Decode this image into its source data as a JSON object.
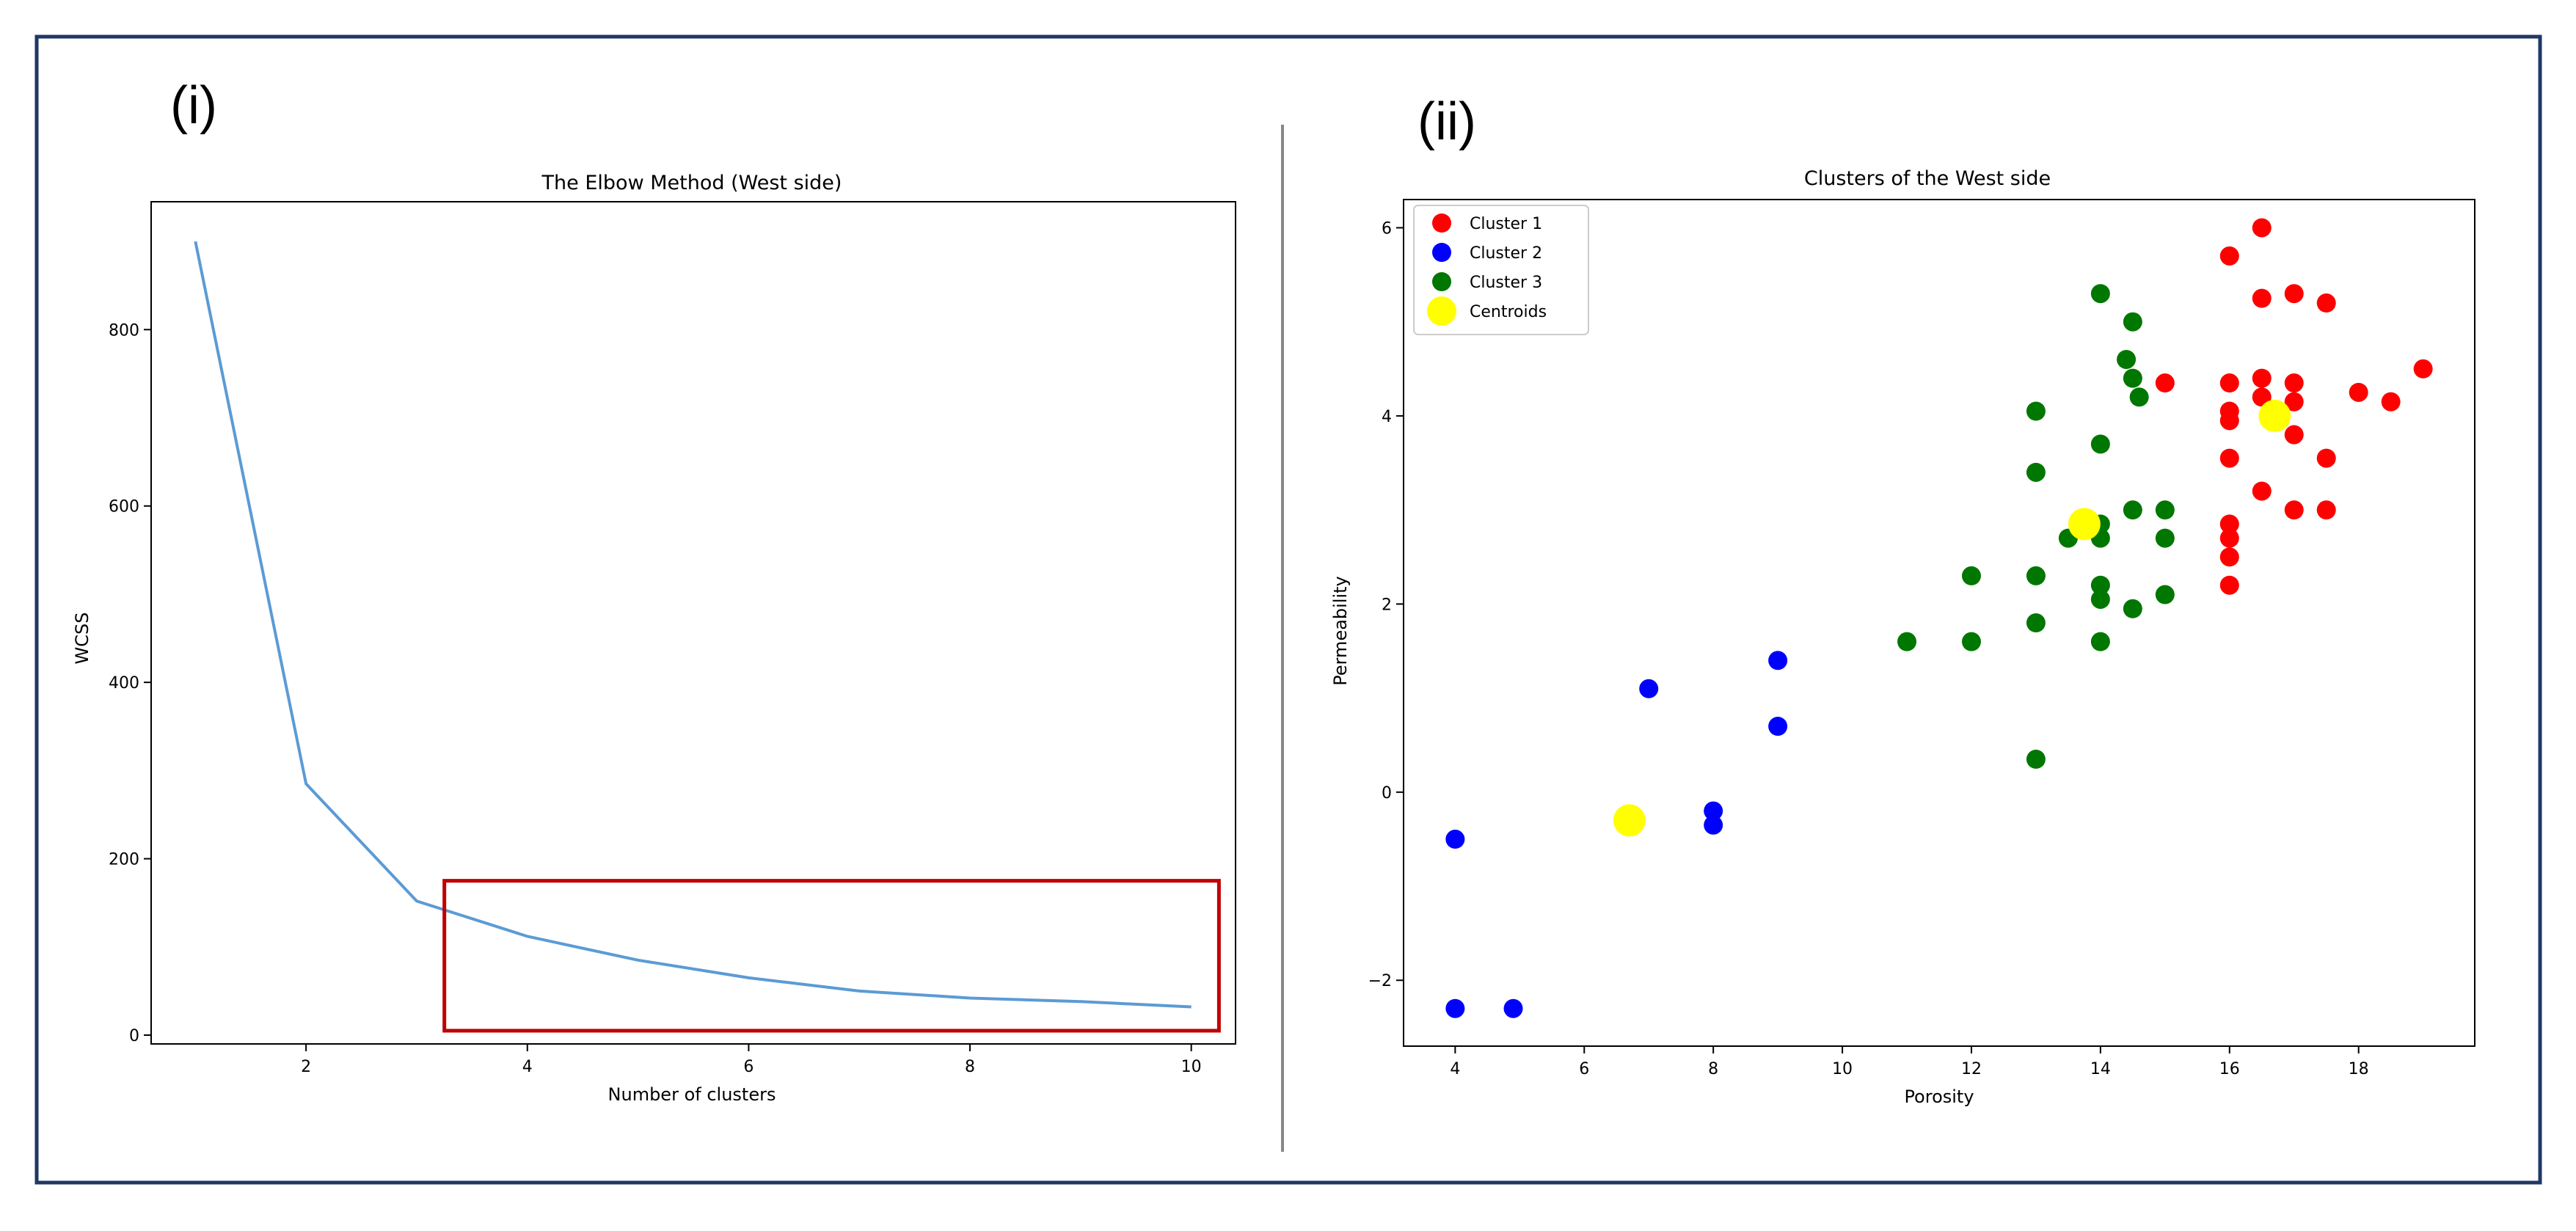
{
  "panels": {
    "left_label": "(i)",
    "right_label": "(ii)"
  },
  "colors": {
    "frame": "#1f3864",
    "line": "#5b9bd5",
    "highlight_box": "#c00000",
    "cluster1": "#ff0000",
    "cluster2": "#0000ff",
    "cluster3": "#007700",
    "centroids": "#ffff00",
    "axes": "#000000",
    "divider": "#888888"
  },
  "chart_data": [
    {
      "type": "line",
      "title": "The Elbow Method (West side)",
      "xlabel": "Number of clusters",
      "ylabel": "WCSS",
      "x": [
        1,
        2,
        3,
        4,
        5,
        6,
        7,
        8,
        9,
        10
      ],
      "values": [
        900,
        285,
        152,
        112,
        85,
        65,
        50,
        42,
        38,
        32
      ],
      "xlim": [
        0.6,
        10.4
      ],
      "ylim": [
        -10,
        945
      ],
      "xticks": [
        2,
        4,
        6,
        8,
        10
      ],
      "yticks": [
        0,
        200,
        400,
        600,
        800
      ],
      "highlight_region": {
        "x": [
          3.25,
          10.25
        ],
        "y": [
          5,
          175
        ]
      },
      "grid": false
    },
    {
      "type": "scatter",
      "title": "Clusters of the West side",
      "xlabel": "Porosity",
      "ylabel": "Permeability",
      "xlim": [
        3.2,
        19.8
      ],
      "ylim": [
        -2.7,
        6.3
      ],
      "xticks": [
        4,
        6,
        8,
        10,
        12,
        14,
        16,
        18
      ],
      "yticks": [
        -2,
        0,
        2,
        4,
        6
      ],
      "legend_position": "top-left",
      "grid": false,
      "series": [
        {
          "name": "Cluster 1",
          "color_key": "cluster1",
          "points": [
            [
              16.5,
              6.0
            ],
            [
              16.0,
              5.7
            ],
            [
              16.5,
              5.25
            ],
            [
              17.0,
              5.3
            ],
            [
              17.5,
              5.2
            ],
            [
              15.0,
              4.35
            ],
            [
              16.0,
              4.35
            ],
            [
              16.5,
              4.4
            ],
            [
              17.0,
              4.35
            ],
            [
              19.0,
              4.5
            ],
            [
              18.0,
              4.25
            ],
            [
              18.5,
              4.15
            ],
            [
              16.5,
              4.2
            ],
            [
              17.0,
              4.15
            ],
            [
              16.0,
              4.05
            ],
            [
              16.0,
              3.95
            ],
            [
              17.0,
              3.8
            ],
            [
              16.0,
              3.55
            ],
            [
              17.5,
              3.55
            ],
            [
              16.5,
              3.2
            ],
            [
              17.0,
              3.0
            ],
            [
              17.5,
              3.0
            ],
            [
              16.0,
              2.85
            ],
            [
              16.0,
              2.7
            ],
            [
              16.0,
              2.5
            ],
            [
              16.0,
              2.2
            ]
          ]
        },
        {
          "name": "Cluster 2",
          "color_key": "cluster2",
          "points": [
            [
              4.0,
              -0.5
            ],
            [
              4.0,
              -2.3
            ],
            [
              4.9,
              -2.3
            ],
            [
              7.0,
              1.1
            ],
            [
              8.0,
              -0.2
            ],
            [
              8.0,
              -0.35
            ],
            [
              9.0,
              1.4
            ],
            [
              9.0,
              0.7
            ]
          ]
        },
        {
          "name": "Cluster 3",
          "color_key": "cluster3",
          "points": [
            [
              14.0,
              5.3
            ],
            [
              14.5,
              5.0
            ],
            [
              14.4,
              4.6
            ],
            [
              14.5,
              4.4
            ],
            [
              14.6,
              4.2
            ],
            [
              13.0,
              4.05
            ],
            [
              14.0,
              3.7
            ],
            [
              13.0,
              3.4
            ],
            [
              14.5,
              3.0
            ],
            [
              15.0,
              3.0
            ],
            [
              14.0,
              2.85
            ],
            [
              14.0,
              2.7
            ],
            [
              13.5,
              2.7
            ],
            [
              15.0,
              2.7
            ],
            [
              12.0,
              2.3
            ],
            [
              13.0,
              2.3
            ],
            [
              14.0,
              2.2
            ],
            [
              14.0,
              2.05
            ],
            [
              15.0,
              2.1
            ],
            [
              14.5,
              1.95
            ],
            [
              13.0,
              1.8
            ],
            [
              11.0,
              1.6
            ],
            [
              12.0,
              1.6
            ],
            [
              14.0,
              1.6
            ],
            [
              13.0,
              0.35
            ]
          ]
        },
        {
          "name": "Centroids",
          "color_key": "centroids",
          "points": [
            [
              6.7,
              -0.3
            ],
            [
              13.75,
              2.85
            ],
            [
              16.7,
              4.0
            ]
          ]
        }
      ]
    }
  ]
}
